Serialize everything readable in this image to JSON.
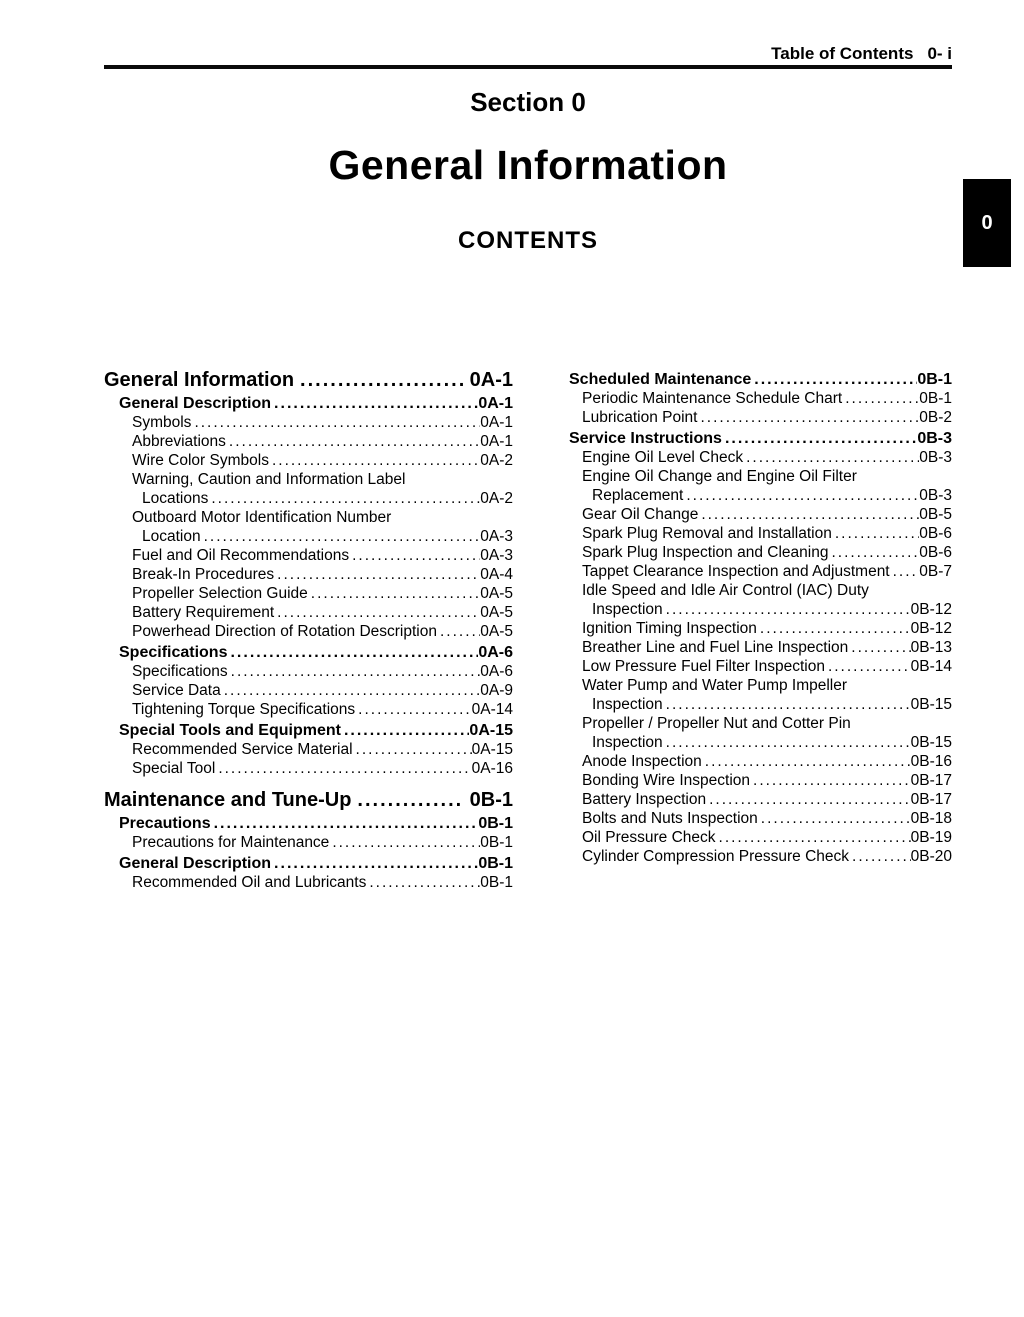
{
  "page_header": {
    "label": "Table of Contents",
    "page": "0- i"
  },
  "section": {
    "kicker": "Section 0",
    "title": "General Information",
    "contents_label": "CONTENTS"
  },
  "side_tab": {
    "label": "0",
    "bg": "#000000",
    "fg": "#ffffff"
  },
  "colors": {
    "ink": "#000000",
    "paper": "#ffffff"
  },
  "toc": {
    "left": [
      {
        "level": 1,
        "lines": [
          "General Information"
        ],
        "page": "0A-1"
      },
      {
        "level": 2,
        "lines": [
          "General Description"
        ],
        "page": "0A-1"
      },
      {
        "level": 3,
        "lines": [
          "Symbols"
        ],
        "page": "0A-1"
      },
      {
        "level": 3,
        "lines": [
          "Abbreviations"
        ],
        "page": "0A-1"
      },
      {
        "level": 3,
        "lines": [
          "Wire Color Symbols"
        ],
        "page": "0A-2"
      },
      {
        "level": 3,
        "lines": [
          "Warning, Caution and Information Label",
          "Locations"
        ],
        "page": "0A-2"
      },
      {
        "level": 3,
        "lines": [
          "Outboard Motor Identification Number",
          "Location"
        ],
        "page": "0A-3"
      },
      {
        "level": 3,
        "lines": [
          "Fuel and Oil Recommendations"
        ],
        "page": "0A-3"
      },
      {
        "level": 3,
        "lines": [
          "Break-In Procedures"
        ],
        "page": "0A-4"
      },
      {
        "level": 3,
        "lines": [
          "Propeller Selection Guide"
        ],
        "page": "0A-5"
      },
      {
        "level": 3,
        "lines": [
          "Battery Requirement"
        ],
        "page": "0A-5"
      },
      {
        "level": 3,
        "lines": [
          "Powerhead Direction of Rotation Description"
        ],
        "page": "0A-5"
      },
      {
        "level": 2,
        "lines": [
          "Specifications"
        ],
        "page": "0A-6"
      },
      {
        "level": 3,
        "lines": [
          "Specifications"
        ],
        "page": "0A-6"
      },
      {
        "level": 3,
        "lines": [
          "Service Data"
        ],
        "page": "0A-9"
      },
      {
        "level": 3,
        "lines": [
          "Tightening Torque Specifications"
        ],
        "page": "0A-14"
      },
      {
        "level": 2,
        "lines": [
          "Special Tools and Equipment"
        ],
        "page": "0A-15"
      },
      {
        "level": 3,
        "lines": [
          "Recommended Service Material"
        ],
        "page": "0A-15"
      },
      {
        "level": 3,
        "lines": [
          "Special Tool"
        ],
        "page": "0A-16"
      },
      {
        "level": 1,
        "lines": [
          "Maintenance and Tune-Up"
        ],
        "page": "0B-1"
      },
      {
        "level": 2,
        "lines": [
          "Precautions"
        ],
        "page": "0B-1"
      },
      {
        "level": 3,
        "lines": [
          "Precautions for Maintenance"
        ],
        "page": "0B-1"
      },
      {
        "level": 2,
        "lines": [
          "General Description"
        ],
        "page": "0B-1"
      },
      {
        "level": 3,
        "lines": [
          "Recommended Oil and Lubricants"
        ],
        "page": "0B-1"
      }
    ],
    "right": [
      {
        "level": 2,
        "lines": [
          "Scheduled Maintenance"
        ],
        "page": "0B-1"
      },
      {
        "level": 3,
        "lines": [
          "Periodic Maintenance Schedule Chart"
        ],
        "page": "0B-1"
      },
      {
        "level": 3,
        "lines": [
          "Lubrication Point"
        ],
        "page": "0B-2"
      },
      {
        "level": 2,
        "lines": [
          "Service Instructions"
        ],
        "page": "0B-3"
      },
      {
        "level": 3,
        "lines": [
          "Engine Oil Level Check"
        ],
        "page": "0B-3"
      },
      {
        "level": 3,
        "lines": [
          "Engine Oil Change and Engine Oil Filter",
          "Replacement"
        ],
        "page": "0B-3"
      },
      {
        "level": 3,
        "lines": [
          "Gear Oil Change"
        ],
        "page": "0B-5"
      },
      {
        "level": 3,
        "lines": [
          "Spark Plug Removal and Installation"
        ],
        "page": "0B-6"
      },
      {
        "level": 3,
        "lines": [
          "Spark Plug Inspection and Cleaning"
        ],
        "page": "0B-6"
      },
      {
        "level": 3,
        "lines": [
          "Tappet Clearance Inspection and Adjustment"
        ],
        "page": "0B-7"
      },
      {
        "level": 3,
        "lines": [
          "Idle Speed and Idle Air Control (IAC) Duty",
          "Inspection"
        ],
        "page": "0B-12"
      },
      {
        "level": 3,
        "lines": [
          "Ignition Timing Inspection"
        ],
        "page": "0B-12"
      },
      {
        "level": 3,
        "lines": [
          "Breather Line and Fuel Line Inspection"
        ],
        "page": "0B-13"
      },
      {
        "level": 3,
        "lines": [
          "Low Pressure Fuel Filter Inspection"
        ],
        "page": "0B-14"
      },
      {
        "level": 3,
        "lines": [
          "Water Pump and Water Pump Impeller",
          "Inspection"
        ],
        "page": "0B-15"
      },
      {
        "level": 3,
        "lines": [
          "Propeller / Propeller Nut and Cotter Pin",
          "Inspection"
        ],
        "page": "0B-15"
      },
      {
        "level": 3,
        "lines": [
          "Anode Inspection"
        ],
        "page": "0B-16"
      },
      {
        "level": 3,
        "lines": [
          "Bonding Wire Inspection"
        ],
        "page": "0B-17"
      },
      {
        "level": 3,
        "lines": [
          "Battery Inspection"
        ],
        "page": "0B-17"
      },
      {
        "level": 3,
        "lines": [
          "Bolts and Nuts Inspection"
        ],
        "page": "0B-18"
      },
      {
        "level": 3,
        "lines": [
          "Oil Pressure Check"
        ],
        "page": "0B-19"
      },
      {
        "level": 3,
        "lines": [
          "Cylinder Compression Pressure Check"
        ],
        "page": "0B-20"
      }
    ]
  }
}
